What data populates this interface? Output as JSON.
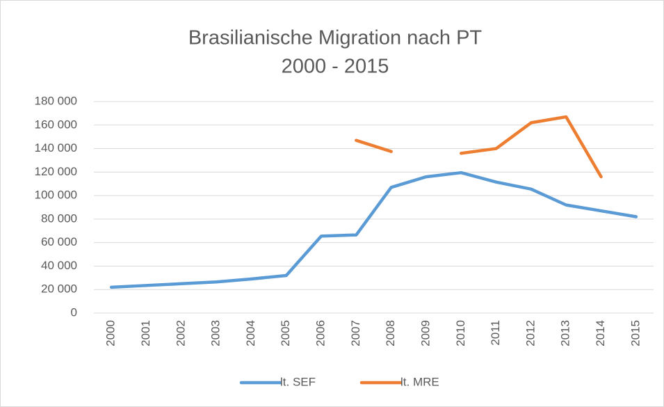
{
  "chart_data": {
    "type": "line",
    "title_lines": [
      "Brasilianische Migration nach PT",
      "2000 - 2015"
    ],
    "categories": [
      "2000",
      "2001",
      "2002",
      "2003",
      "2004",
      "2005",
      "2006",
      "2007",
      "2008",
      "2009",
      "2010",
      "2011",
      "2012",
      "2013",
      "2014",
      "2015"
    ],
    "series": [
      {
        "name": "lt. SEF",
        "color": "#5b9bd5",
        "values": [
          22000,
          23500,
          25000,
          26500,
          29000,
          32000,
          65500,
          66500,
          107000,
          116000,
          119500,
          111500,
          105500,
          92000,
          87000,
          82000
        ]
      },
      {
        "name": "lt. MRE",
        "color": "#ed7d31",
        "values": [
          null,
          null,
          null,
          null,
          null,
          null,
          null,
          147000,
          137500,
          null,
          136000,
          140000,
          162000,
          167000,
          116000,
          null
        ]
      }
    ],
    "ylim": [
      0,
      180000
    ],
    "yticks": [
      0,
      {
        "value": 20000,
        "label": "20 000"
      },
      {
        "value": 40000,
        "label": "40 000"
      },
      {
        "value": 60000,
        "label": "60 000"
      },
      {
        "value": 80000,
        "label": "80 000"
      },
      {
        "value": 100000,
        "label": "100 000"
      },
      {
        "value": 120000,
        "label": "120 000"
      },
      {
        "value": 140000,
        "label": "140 000"
      },
      {
        "value": 160000,
        "label": "160 000"
      },
      {
        "value": 180000,
        "label": "180 000"
      }
    ],
    "grid": true,
    "legend": "bottom"
  }
}
